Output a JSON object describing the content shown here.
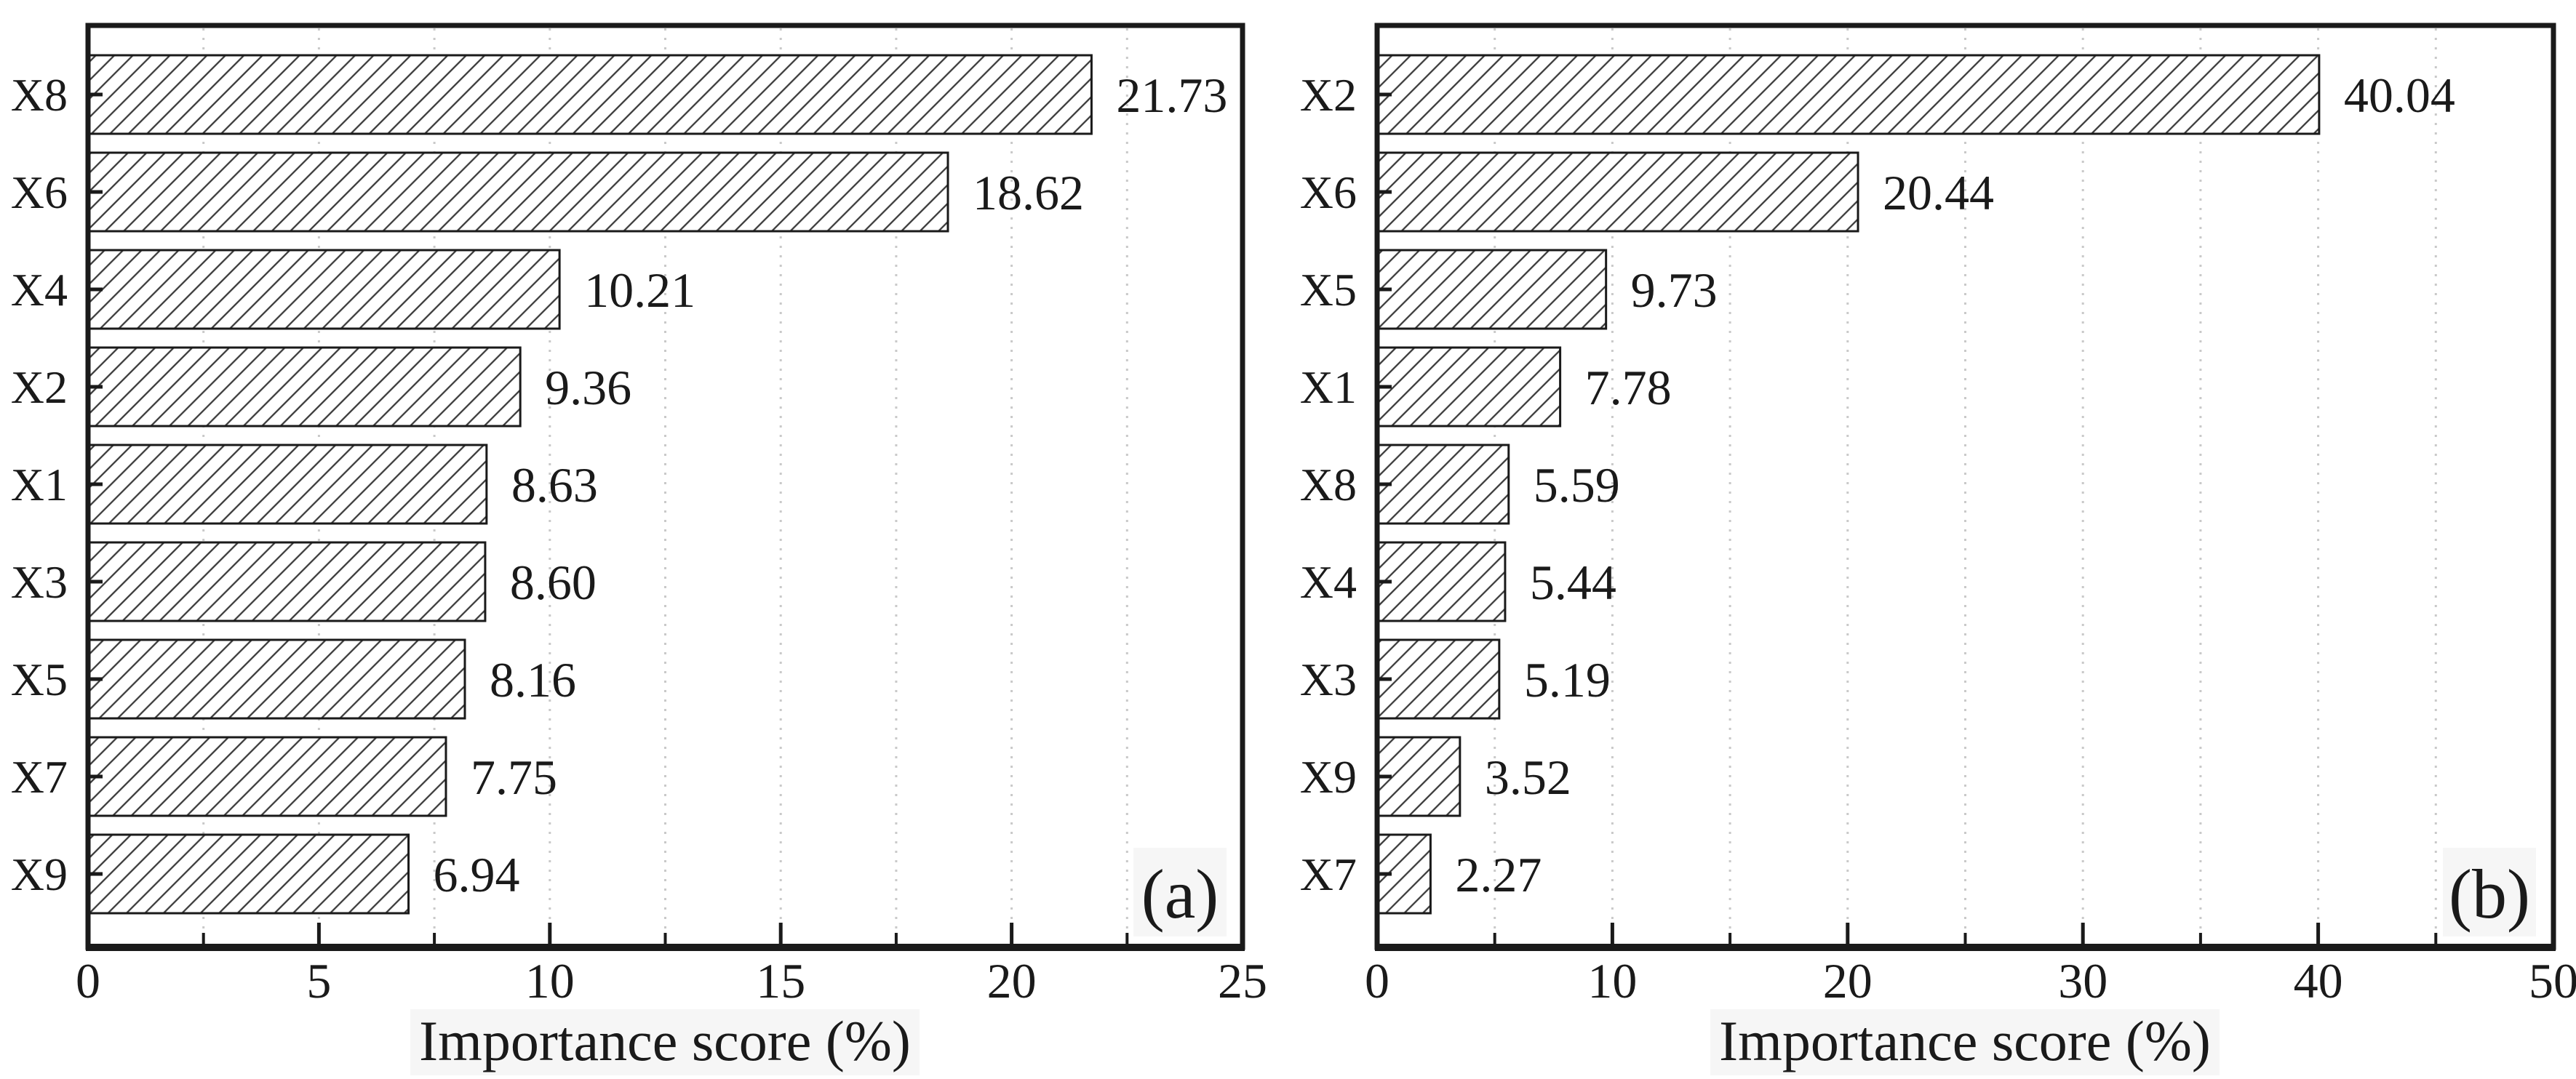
{
  "figure": {
    "background": "#ffffff",
    "ink_color": "#1a1a1a",
    "bar_fill": "#ffffff",
    "hatch_line_color": "#3a3a3a",
    "hatch_style": "diagonal-45deg",
    "gridline_color": "#c9c9c9",
    "grid_style": "vertical-dotted",
    "label_bg_color": "#f6f6f6"
  },
  "chart_data": [
    {
      "type": "bar",
      "orientation": "horizontal",
      "panel_label": "(a)",
      "xlabel": "Importance score (%)",
      "xlim": [
        0,
        25
      ],
      "x_major_ticks": [
        0,
        5,
        10,
        15,
        20,
        25
      ],
      "x_major_tick_labels": [
        "0",
        "5",
        "10",
        "15",
        "20",
        "25"
      ],
      "x_minor_step": 2.5,
      "grid": "dotted-vertical-every-2.5",
      "legend": "none",
      "categories": [
        "X8",
        "X6",
        "X4",
        "X2",
        "X1",
        "X3",
        "X5",
        "X7",
        "X9"
      ],
      "values": [
        21.73,
        18.62,
        10.21,
        9.36,
        8.63,
        8.6,
        8.16,
        7.75,
        6.94
      ],
      "value_labels": [
        "21.73",
        "18.62",
        "10.21",
        "9.36",
        "8.63",
        "8.60",
        "8.16",
        "7.75",
        "6.94"
      ]
    },
    {
      "type": "bar",
      "orientation": "horizontal",
      "panel_label": "(b)",
      "xlabel": "Importance score (%)",
      "xlim": [
        0,
        50
      ],
      "x_major_ticks": [
        0,
        10,
        20,
        30,
        40,
        50
      ],
      "x_major_tick_labels": [
        "0",
        "10",
        "20",
        "30",
        "40",
        "50"
      ],
      "x_minor_step": 5,
      "grid": "dotted-vertical-every-5",
      "legend": "none",
      "categories": [
        "X2",
        "X6",
        "X5",
        "X1",
        "X8",
        "X4",
        "X3",
        "X9",
        "X7"
      ],
      "values": [
        40.04,
        20.44,
        9.73,
        7.78,
        5.59,
        5.44,
        5.19,
        3.52,
        2.27
      ],
      "value_labels": [
        "40.04",
        "20.44",
        "9.73",
        "7.78",
        "5.59",
        "5.44",
        "5.19",
        "3.52",
        "2.27"
      ]
    }
  ]
}
